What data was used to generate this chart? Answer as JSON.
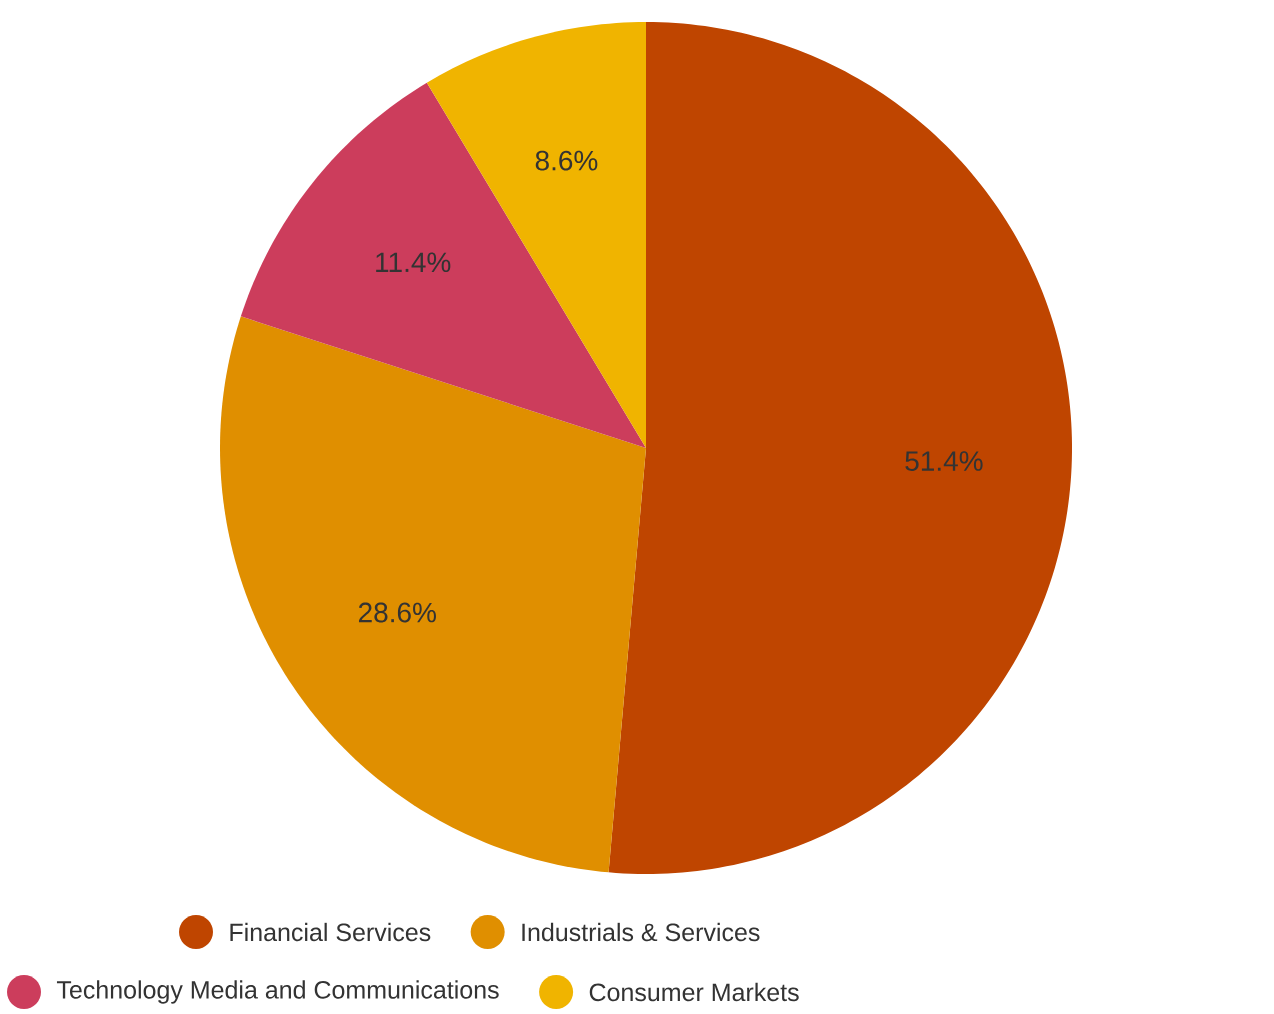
{
  "chart_data": {
    "type": "pie",
    "categories": [
      "Financial Services",
      "Industrials & Services",
      "Technology Media and Communications",
      "Consumer Markets"
    ],
    "values": [
      51.4,
      28.6,
      11.4,
      8.6
    ],
    "value_labels": [
      "51.4%",
      "28.6%",
      "11.4%",
      "8.6%"
    ],
    "colors": [
      "#bf4500",
      "#e08f00",
      "#cc3d5c",
      "#f0b400"
    ],
    "legend": "bottom"
  }
}
